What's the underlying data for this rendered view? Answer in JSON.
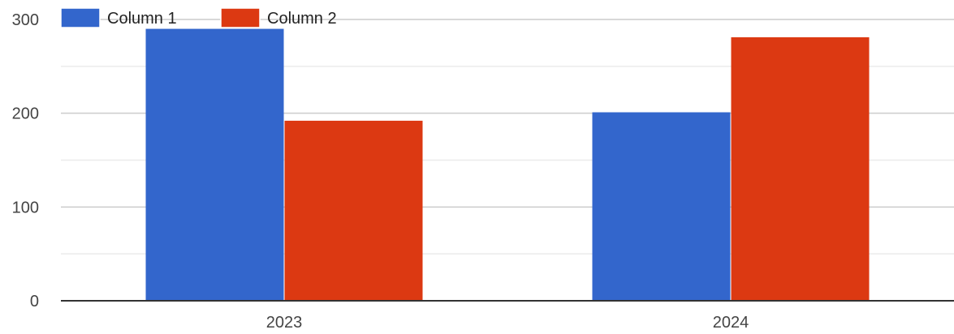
{
  "chart_data": {
    "type": "bar",
    "categories": [
      "2023",
      "2024"
    ],
    "series": [
      {
        "name": "Column 1",
        "color": "#3366cc",
        "values": [
          290,
          201
        ]
      },
      {
        "name": "Column 2",
        "color": "#dc3912",
        "values": [
          192,
          281
        ]
      }
    ],
    "ylim": [
      0,
      300
    ],
    "yticks": [
      0,
      100,
      200,
      300
    ],
    "minor_gridlines": true,
    "grid": true,
    "legend": "top-left",
    "xlabel": "",
    "ylabel": ""
  }
}
